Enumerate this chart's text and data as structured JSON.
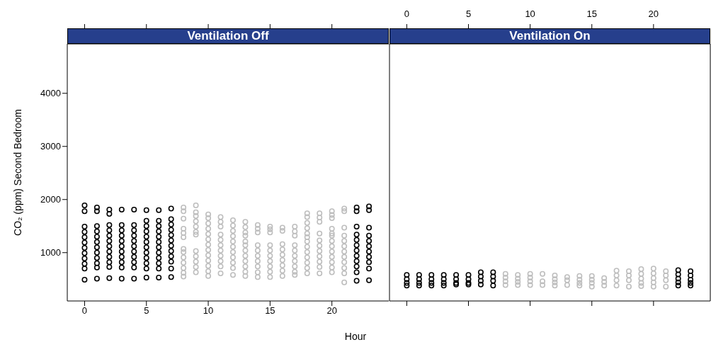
{
  "chart_data": [
    {
      "type": "scatter",
      "title": "Ventilation Off",
      "xlabel": "Hour",
      "ylabel": "CO₂ (ppm) Second Bedroom",
      "xlim": [
        -1.4,
        24.6
      ],
      "xticks": [
        0,
        5,
        10,
        15,
        20
      ],
      "ylim": [
        90,
        4930
      ],
      "yticks": [
        1000,
        2000,
        3000,
        4000
      ],
      "marker": "circle",
      "grid": false,
      "legend": false,
      "series": [
        {
          "color": "#000000",
          "x": [
            0,
            0,
            0,
            0,
            0,
            0,
            0,
            0,
            0,
            0,
            0,
            0,
            1,
            1,
            1,
            1,
            1,
            1,
            1,
            1,
            1,
            1,
            1,
            1,
            2,
            2,
            2,
            2,
            2,
            2,
            2,
            2,
            2,
            2,
            2,
            2,
            3,
            3,
            3,
            3,
            3,
            3,
            3,
            3,
            3,
            3,
            3,
            4,
            4,
            4,
            4,
            4,
            4,
            4,
            4,
            4,
            4,
            4,
            5,
            5,
            5,
            5,
            5,
            5,
            5,
            5,
            5,
            5,
            5,
            5,
            6,
            6,
            6,
            6,
            6,
            6,
            6,
            6,
            6,
            6,
            6,
            6,
            7,
            7,
            7,
            7,
            7,
            7,
            7,
            7,
            7,
            7,
            7,
            7,
            22,
            22,
            22,
            22,
            22,
            22,
            22,
            22,
            22,
            22,
            22,
            22,
            23,
            23,
            23,
            23,
            23,
            23,
            23,
            23,
            23,
            23,
            23
          ],
          "values": [
            1890,
            1780,
            1490,
            1390,
            1290,
            1190,
            1090,
            990,
            890,
            790,
            700,
            490,
            1850,
            1780,
            1500,
            1400,
            1300,
            1200,
            1100,
            1000,
            900,
            800,
            720,
            510,
            1810,
            1730,
            1520,
            1420,
            1320,
            1220,
            1120,
            1020,
            920,
            820,
            730,
            520,
            1810,
            1520,
            1420,
            1320,
            1220,
            1120,
            1020,
            920,
            820,
            720,
            510,
            1810,
            1520,
            1420,
            1320,
            1220,
            1120,
            1020,
            920,
            820,
            720,
            510,
            1800,
            1600,
            1500,
            1400,
            1300,
            1200,
            1100,
            1000,
            900,
            800,
            700,
            530,
            1800,
            1600,
            1500,
            1400,
            1300,
            1200,
            1100,
            1000,
            900,
            800,
            700,
            530,
            1830,
            1630,
            1530,
            1430,
            1330,
            1230,
            1130,
            1030,
            930,
            830,
            700,
            540,
            1850,
            1780,
            1490,
            1340,
            1240,
            1140,
            1040,
            940,
            840,
            740,
            630,
            470,
            1870,
            1800,
            1470,
            1320,
            1220,
            1120,
            1020,
            920,
            820,
            700,
            480
          ]
        },
        {
          "color": "#bebebe",
          "x": [
            8,
            8,
            8,
            8,
            8,
            8,
            8,
            8,
            8,
            8,
            8,
            8,
            8,
            9,
            9,
            9,
            9,
            9,
            9,
            9,
            9,
            9,
            9,
            9,
            9,
            10,
            10,
            10,
            10,
            10,
            10,
            10,
            10,
            10,
            10,
            10,
            10,
            10,
            11,
            11,
            11,
            11,
            11,
            11,
            11,
            11,
            11,
            11,
            11,
            12,
            12,
            12,
            12,
            12,
            12,
            12,
            12,
            12,
            12,
            12,
            13,
            13,
            13,
            13,
            13,
            13,
            13,
            13,
            13,
            13,
            13,
            13,
            14,
            14,
            14,
            14,
            14,
            14,
            14,
            14,
            14,
            14,
            15,
            15,
            15,
            15,
            15,
            15,
            15,
            15,
            15,
            15,
            16,
            16,
            16,
            16,
            16,
            16,
            16,
            16,
            16,
            17,
            17,
            17,
            17,
            17,
            17,
            17,
            17,
            17,
            17,
            18,
            18,
            18,
            18,
            18,
            18,
            18,
            18,
            18,
            18,
            18,
            18,
            18,
            19,
            19,
            19,
            19,
            19,
            19,
            19,
            19,
            19,
            19,
            19,
            20,
            20,
            20,
            20,
            20,
            20,
            20,
            20,
            20,
            20,
            20,
            20,
            20,
            21,
            21,
            21,
            21,
            21,
            21,
            21,
            21,
            21,
            21,
            21,
            21
          ],
          "values": [
            1850,
            1780,
            1640,
            1450,
            1370,
            1290,
            1070,
            1010,
            910,
            810,
            710,
            620,
            550,
            1890,
            1760,
            1690,
            1590,
            1490,
            1390,
            1340,
            1030,
            930,
            830,
            730,
            630,
            1720,
            1650,
            1550,
            1450,
            1350,
            1250,
            1150,
            1050,
            950,
            850,
            750,
            650,
            560,
            1670,
            1580,
            1490,
            1340,
            1240,
            1140,
            1040,
            940,
            840,
            740,
            610,
            1610,
            1510,
            1410,
            1310,
            1210,
            1110,
            1010,
            910,
            810,
            710,
            580,
            1580,
            1480,
            1380,
            1320,
            1210,
            1140,
            1040,
            940,
            840,
            740,
            640,
            560,
            1520,
            1450,
            1380,
            1140,
            1040,
            940,
            840,
            740,
            630,
            540,
            1490,
            1440,
            1380,
            1140,
            1040,
            940,
            840,
            740,
            640,
            540,
            1470,
            1410,
            1160,
            1060,
            960,
            860,
            760,
            660,
            560,
            1490,
            1400,
            1320,
            1140,
            1040,
            940,
            840,
            740,
            640,
            580,
            1740,
            1670,
            1560,
            1460,
            1360,
            1290,
            1210,
            1110,
            1010,
            910,
            810,
            710,
            610,
            1740,
            1660,
            1580,
            1360,
            1230,
            1130,
            1030,
            930,
            830,
            730,
            610,
            1780,
            1710,
            1650,
            1450,
            1360,
            1320,
            1220,
            1120,
            1020,
            920,
            820,
            720,
            630,
            1830,
            1780,
            1470,
            1320,
            1220,
            1120,
            1020,
            920,
            820,
            710,
            610,
            440
          ]
        }
      ]
    },
    {
      "type": "scatter",
      "title": "Ventilation On",
      "xlim": [
        -1.4,
        24.6
      ],
      "xticks": [
        0,
        5,
        10,
        15,
        20
      ],
      "ylim": [
        90,
        4930
      ],
      "tick_labels": "x",
      "marker": "circle",
      "grid": false,
      "legend": false,
      "series": [
        {
          "color": "#000000",
          "x": [
            0,
            0,
            0,
            0,
            1,
            1,
            1,
            1,
            2,
            2,
            2,
            2,
            3,
            3,
            3,
            3,
            4,
            4,
            4,
            4,
            5,
            5,
            5,
            5,
            6,
            6,
            6,
            6,
            7,
            7,
            7,
            7,
            22,
            22,
            22,
            22,
            22,
            23,
            23,
            23,
            23,
            23
          ],
          "values": [
            580,
            500,
            430,
            380,
            580,
            500,
            430,
            380,
            580,
            500,
            430,
            380,
            580,
            500,
            430,
            380,
            580,
            500,
            430,
            400,
            580,
            500,
            430,
            400,
            630,
            550,
            470,
            400,
            630,
            550,
            470,
            380,
            670,
            590,
            510,
            440,
            380,
            650,
            570,
            490,
            430,
            380
          ]
        },
        {
          "color": "#bebebe",
          "x": [
            8,
            8,
            8,
            8,
            9,
            9,
            9,
            9,
            10,
            10,
            10,
            10,
            11,
            11,
            11,
            12,
            12,
            12,
            12,
            13,
            13,
            13,
            14,
            14,
            14,
            14,
            15,
            15,
            15,
            15,
            16,
            16,
            16,
            17,
            17,
            17,
            17,
            18,
            18,
            18,
            18,
            19,
            19,
            19,
            19,
            19,
            20,
            20,
            20,
            20,
            20,
            21,
            21,
            21,
            21
          ],
          "values": [
            600,
            530,
            460,
            390,
            580,
            510,
            450,
            390,
            600,
            530,
            460,
            390,
            600,
            460,
            390,
            570,
            500,
            440,
            380,
            540,
            480,
            390,
            560,
            490,
            430,
            380,
            560,
            490,
            430,
            360,
            520,
            450,
            380,
            660,
            570,
            480,
            380,
            650,
            570,
            480,
            360,
            690,
            600,
            510,
            430,
            370,
            700,
            610,
            520,
            440,
            360,
            650,
            570,
            480,
            360
          ]
        }
      ]
    }
  ]
}
